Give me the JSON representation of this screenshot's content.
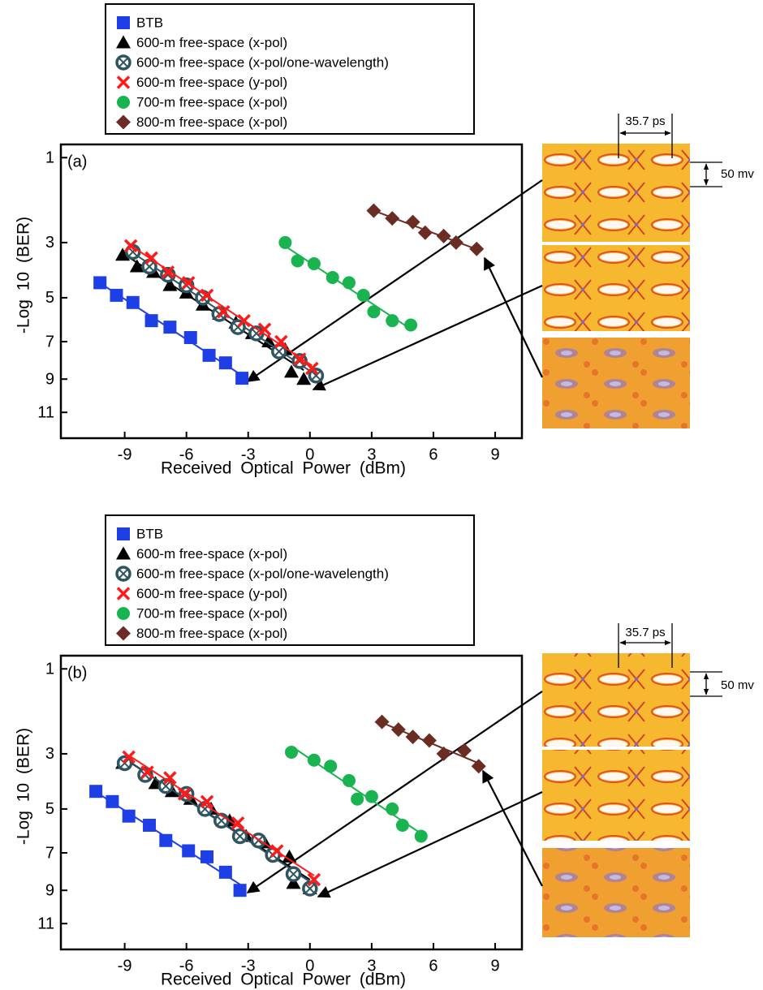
{
  "chart_data": [
    {
      "type": "scatter",
      "panel_label": "(a)",
      "xlabel": "Received Optical Power (dBm)",
      "ylabel": "-Log 10 (BER)",
      "xlim": [
        -12.1,
        10.3
      ],
      "ylim": [
        0.8,
        12.7
      ],
      "xticks": [
        -9,
        -6,
        -3,
        0,
        3,
        6,
        9
      ],
      "yticks": [
        1,
        3,
        5,
        7,
        9,
        11
      ],
      "yscale": "q-factor",
      "legend": "above",
      "annotations": [
        "35.7 ps",
        "50 mv"
      ],
      "series": [
        {
          "name": "BTB",
          "color": "#1f3fe6",
          "marker": "square",
          "x": [
            -10.2,
            -9.4,
            -8.6,
            -7.7,
            -6.8,
            -5.8,
            -4.9,
            -4.1,
            -3.3
          ],
          "values": [
            4.4,
            4.9,
            5.2,
            6.0,
            6.3,
            6.8,
            7.7,
            8.1,
            8.95
          ]
        },
        {
          "name": "600-m free-space (x-pol)",
          "color": "#000000",
          "marker": "triangle",
          "x": [
            -9.1,
            -8.4,
            -7.6,
            -6.8,
            -6.0,
            -5.2,
            -4.4,
            -3.6,
            -2.8,
            -2.0,
            -1.2,
            -0.9,
            -0.3
          ],
          "values": [
            3.4,
            3.8,
            4.0,
            4.5,
            4.8,
            5.3,
            5.7,
            6.1,
            6.6,
            7.0,
            7.4,
            8.6,
            9.0
          ]
        },
        {
          "name": "600-m free-space (x-pol/one-wavelength)",
          "color": "#2f5560",
          "marker": "circle-x",
          "x": [
            -8.6,
            -7.8,
            -6.9,
            -6.0,
            -5.2,
            -4.4,
            -3.5,
            -2.6,
            -1.5,
            -0.5,
            0.3
          ],
          "values": [
            3.3,
            3.8,
            4.1,
            4.5,
            5.0,
            5.7,
            6.3,
            6.6,
            7.5,
            8.0,
            8.8
          ]
        },
        {
          "name": "600-m free-space (y-pol)",
          "color": "#ff1a1a",
          "marker": "x",
          "x": [
            -8.7,
            -7.7,
            -6.9,
            -5.9,
            -5.0,
            -4.2,
            -3.2,
            -2.2,
            -1.4,
            -0.5,
            0.1
          ],
          "values": [
            3.1,
            3.5,
            4.0,
            4.4,
            4.9,
            5.6,
            6.0,
            6.4,
            7.0,
            7.9,
            8.4
          ]
        },
        {
          "name": "700-m free-space (x-pol)",
          "color": "#19b34f",
          "marker": "circle",
          "x": [
            -1.2,
            -0.6,
            0.2,
            1.1,
            1.9,
            2.6,
            3.1,
            4.0,
            4.9
          ],
          "values": [
            3.0,
            3.6,
            3.7,
            4.2,
            4.4,
            4.9,
            5.6,
            6.0,
            6.2
          ]
        },
        {
          "name": "800-m free-space (x-pol)",
          "color": "#6b2c24",
          "marker": "diamond",
          "x": [
            3.1,
            4.0,
            5.0,
            5.6,
            6.5,
            7.1,
            8.1
          ],
          "values": [
            2.1,
            2.3,
            2.4,
            2.7,
            2.8,
            3.0,
            3.2
          ]
        }
      ]
    },
    {
      "type": "scatter",
      "panel_label": "(b)",
      "xlabel": "Received Optical Power (dBm)",
      "ylabel": "-Log 10 (BER)",
      "xlim": [
        -12.1,
        10.3
      ],
      "ylim": [
        0.8,
        12.7
      ],
      "xticks": [
        -9,
        -6,
        -3,
        0,
        3,
        6,
        9
      ],
      "yticks": [
        1,
        3,
        5,
        7,
        9,
        11
      ],
      "yscale": "q-factor",
      "legend": "above",
      "annotations": [
        "35.7 ps",
        "50 mv"
      ],
      "series": [
        {
          "name": "BTB",
          "color": "#1f3fe6",
          "marker": "square",
          "x": [
            -10.4,
            -9.6,
            -8.8,
            -7.8,
            -7.0,
            -5.9,
            -5.0,
            -4.1,
            -3.4
          ],
          "values": [
            4.3,
            4.7,
            5.3,
            5.7,
            6.4,
            6.9,
            7.2,
            8.0,
            9.0
          ]
        },
        {
          "name": "600-m free-space (x-pol)",
          "color": "#000000",
          "marker": "triangle",
          "x": [
            -9.1,
            -8.0,
            -7.5,
            -6.7,
            -5.8,
            -4.8,
            -3.9,
            -3.1,
            -2.2,
            -1.0,
            -0.8,
            0.0
          ],
          "values": [
            3.3,
            3.6,
            4.0,
            4.3,
            4.6,
            5.0,
            5.5,
            6.2,
            6.5,
            7.2,
            8.6,
            8.9
          ]
        },
        {
          "name": "600-m free-space (x-pol/one-wavelength)",
          "color": "#2f5560",
          "marker": "circle-x",
          "x": [
            -9.0,
            -8.0,
            -7.0,
            -6.0,
            -5.1,
            -4.3,
            -3.4,
            -2.5,
            -1.8,
            -0.8,
            0.0
          ],
          "values": [
            3.3,
            3.7,
            4.1,
            4.4,
            5.0,
            5.5,
            6.2,
            6.4,
            7.1,
            8.1,
            8.9
          ]
        },
        {
          "name": "600-m free-space (y-pol)",
          "color": "#ff1a1a",
          "marker": "x",
          "x": [
            -8.8,
            -7.9,
            -6.8,
            -6.1,
            -5.0,
            -3.5,
            -1.6,
            0.2
          ],
          "values": [
            3.1,
            3.6,
            3.8,
            4.4,
            4.7,
            5.6,
            6.9,
            8.4
          ]
        },
        {
          "name": "700-m free-space (x-pol)",
          "color": "#19b34f",
          "marker": "circle",
          "x": [
            -0.9,
            0.2,
            1.0,
            1.9,
            2.3,
            3.0,
            4.0,
            4.5,
            5.4
          ],
          "values": [
            2.95,
            3.2,
            3.4,
            3.9,
            4.6,
            4.5,
            5.0,
            5.7,
            6.2
          ]
        },
        {
          "name": "800-m free-space (x-pol)",
          "color": "#6b2c24",
          "marker": "diamond",
          "x": [
            3.5,
            4.3,
            5.0,
            5.8,
            6.5,
            7.5,
            8.2
          ],
          "values": [
            2.1,
            2.3,
            2.5,
            2.6,
            3.0,
            2.9,
            3.4
          ]
        }
      ]
    }
  ]
}
